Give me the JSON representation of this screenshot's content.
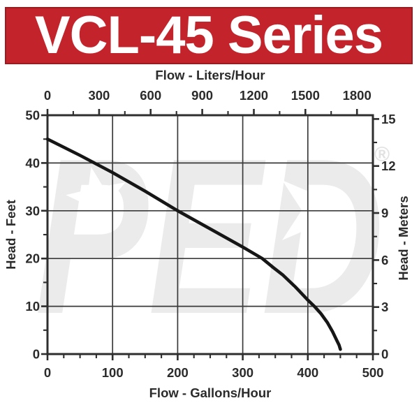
{
  "banner": {
    "title": "VCL-45 Series",
    "bg_color": "#c3242b",
    "border_color": "#9a1c21",
    "text_color": "#ffffff"
  },
  "watermark": {
    "text": "PED",
    "registered_mark": "®",
    "color": "#ebebeb"
  },
  "chart_data": {
    "type": "line",
    "grid": "on",
    "legend": "none",
    "ink_color": "#2b2b2b",
    "curve_color": "#161616",
    "axes": {
      "top": {
        "label": "Flow - Liters/Hour",
        "ticks": [
          0,
          300,
          600,
          900,
          1200,
          1500,
          1800
        ],
        "minor_step": 150
      },
      "bottom": {
        "label": "Flow - Gallons/Hour",
        "ticks": [
          0,
          100,
          200,
          300,
          400,
          500
        ],
        "minor_step": 25,
        "max": 500
      },
      "left": {
        "label": "Head - Feet",
        "ticks": [
          0,
          10,
          20,
          30,
          40,
          50
        ],
        "minor_step": 5,
        "max": 50
      },
      "right": {
        "label": "Head - Meters",
        "ticks": [
          0,
          3,
          6,
          9,
          12,
          15
        ],
        "minor_step": 1.5
      }
    },
    "series": [
      {
        "name": "VCL-45 head vs flow",
        "points_gph_ft": [
          [
            0,
            45
          ],
          [
            50,
            41.6
          ],
          [
            100,
            38
          ],
          [
            150,
            34.1
          ],
          [
            200,
            30
          ],
          [
            250,
            26.2
          ],
          [
            300,
            22.4
          ],
          [
            330,
            20
          ],
          [
            347,
            18.1
          ],
          [
            362,
            16.5
          ],
          [
            382,
            13.9
          ],
          [
            400,
            11.3
          ],
          [
            410,
            10
          ],
          [
            420,
            8.5
          ],
          [
            430,
            6.6
          ],
          [
            438,
            4.7
          ],
          [
            444,
            3
          ],
          [
            448,
            1.9
          ],
          [
            450,
            1
          ]
        ]
      }
    ]
  }
}
